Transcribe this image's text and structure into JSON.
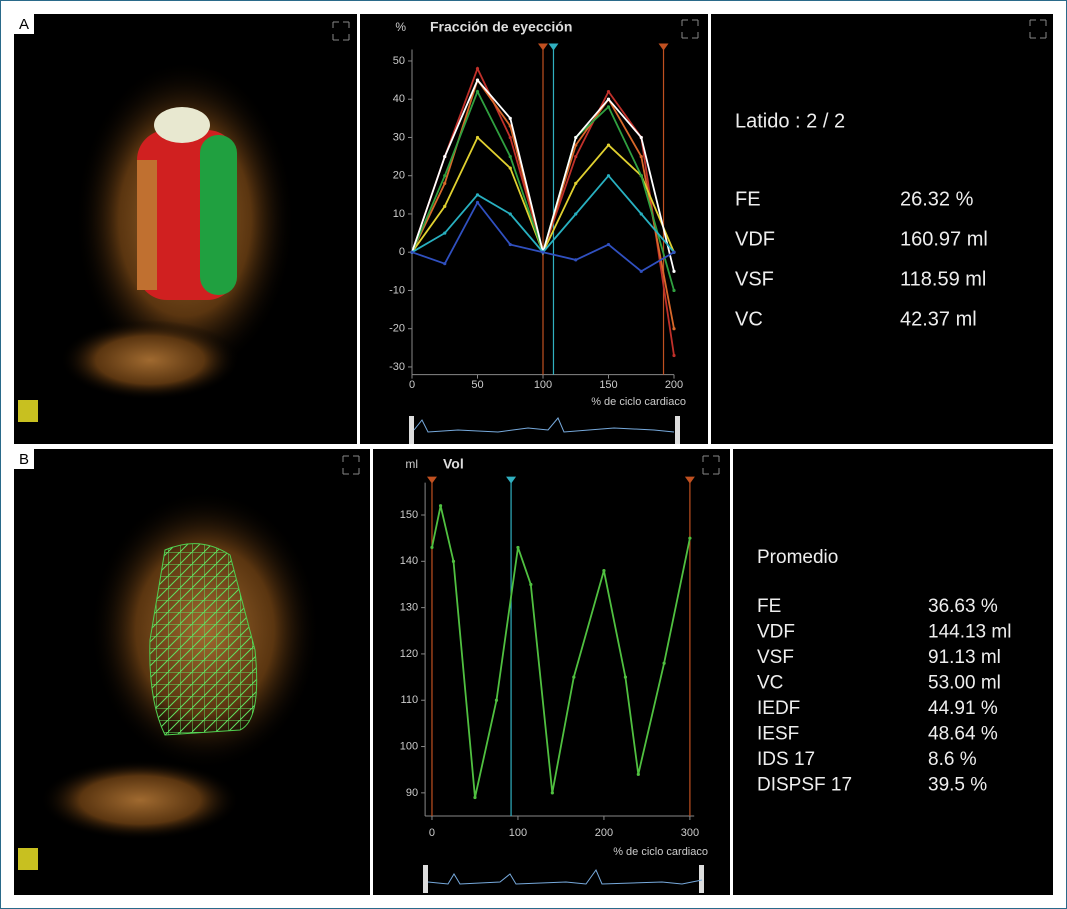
{
  "panels": [
    {
      "label": "A",
      "heading": "Latido : 2 / 2",
      "rows": [
        [
          "FE",
          "26.32 %"
        ],
        [
          "VDF",
          "160.97 ml"
        ],
        [
          "VSF",
          "118.59 ml"
        ],
        [
          "VC",
          "42.37 ml"
        ]
      ]
    },
    {
      "label": "B",
      "heading": "Promedio",
      "rows": [
        [
          "FE",
          "36.63 %"
        ],
        [
          "VDF",
          "144.13 ml"
        ],
        [
          "VSF",
          "91.13 ml"
        ],
        [
          "VC",
          "53.00 ml"
        ],
        [
          "IEDF",
          "44.91 %"
        ],
        [
          "IESF",
          "48.64 %"
        ],
        [
          "IDS 17",
          "8.6 %"
        ],
        [
          "DISPSF 17",
          "39.5 %"
        ]
      ]
    }
  ],
  "chart_data": [
    {
      "type": "line",
      "title": "Fracción de eyección",
      "y_unit": "%",
      "x_label": "% de ciclo cardiaco",
      "x": [
        0,
        25,
        50,
        75,
        100,
        125,
        150,
        175,
        200
      ],
      "series": [
        {
          "color": "#c0302a",
          "values": [
            0,
            25,
            48,
            30,
            0,
            25,
            42,
            30,
            -27
          ]
        },
        {
          "color": "#d8682a",
          "values": [
            0,
            18,
            45,
            33,
            0,
            28,
            40,
            25,
            -20
          ]
        },
        {
          "color": "#e0d030",
          "values": [
            0,
            12,
            30,
            22,
            0,
            18,
            28,
            20,
            0
          ]
        },
        {
          "color": "#30a040",
          "values": [
            0,
            20,
            42,
            25,
            0,
            30,
            38,
            20,
            -10
          ]
        },
        {
          "color": "#ffffff",
          "values": [
            0,
            25,
            45,
            35,
            0,
            30,
            40,
            30,
            -5
          ]
        },
        {
          "color": "#28b0c0",
          "values": [
            0,
            5,
            15,
            10,
            0,
            10,
            20,
            10,
            0
          ]
        },
        {
          "color": "#3050c0",
          "values": [
            0,
            -3,
            13,
            2,
            0,
            -2,
            2,
            -5,
            0
          ]
        }
      ],
      "markers": [
        {
          "x": 100,
          "color": "#c05020"
        },
        {
          "x": 108,
          "color": "#30b0c0"
        },
        {
          "x": 192,
          "color": "#c05020"
        }
      ],
      "xlim": [
        0,
        200
      ],
      "xticks": [
        0,
        50,
        100,
        150,
        200
      ],
      "ylim": [
        -32,
        53
      ],
      "yticks": [
        -30,
        -20,
        -10,
        0,
        10,
        20,
        30,
        40,
        50
      ]
    },
    {
      "type": "line",
      "title": "Vol",
      "y_unit": "ml",
      "x_label": "% de ciclo cardiaco",
      "x": [
        0,
        10,
        25,
        50,
        75,
        100,
        115,
        140,
        165,
        200,
        225,
        240,
        270,
        300
      ],
      "series": [
        {
          "color": "#50c040",
          "values": [
            143,
            152,
            140,
            89,
            110,
            143,
            135,
            90,
            115,
            138,
            115,
            94,
            118,
            145
          ]
        }
      ],
      "markers": [
        {
          "x": 0,
          "color": "#c05020"
        },
        {
          "x": 92,
          "color": "#30b0c0"
        },
        {
          "x": 300,
          "color": "#c05020"
        }
      ],
      "xlim": [
        -8,
        305
      ],
      "xticks": [
        0,
        100,
        200,
        300
      ],
      "ylim": [
        85,
        157
      ],
      "yticks": [
        90,
        100,
        110,
        120,
        130,
        140,
        150
      ]
    }
  ]
}
